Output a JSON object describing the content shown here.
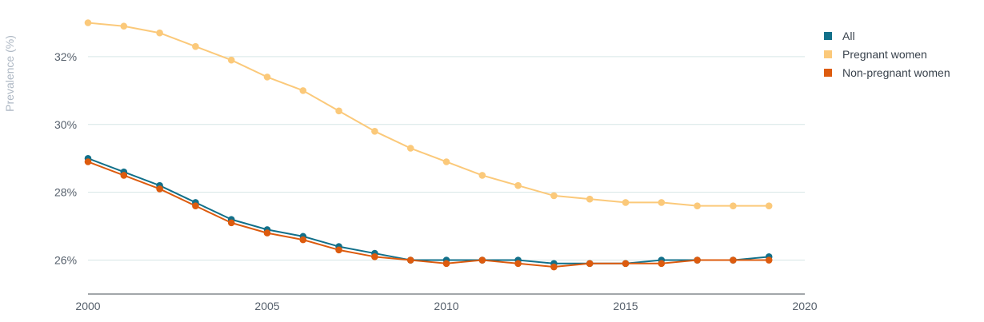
{
  "chart_data": {
    "type": "line",
    "ylabel": "Prevalence (%)",
    "xlabel": "",
    "x": [
      2000,
      2001,
      2002,
      2003,
      2004,
      2005,
      2006,
      2007,
      2008,
      2009,
      2010,
      2011,
      2012,
      2013,
      2014,
      2015,
      2016,
      2017,
      2018,
      2019
    ],
    "xlim": [
      2000,
      2020
    ],
    "ylim": [
      25,
      33.2
    ],
    "x_ticks": [
      {
        "value": 2000,
        "label": "2000"
      },
      {
        "value": 2005,
        "label": "2005"
      },
      {
        "value": 2010,
        "label": "2010"
      },
      {
        "value": 2015,
        "label": "2015"
      },
      {
        "value": 2020,
        "label": "2020"
      }
    ],
    "y_ticks": [
      {
        "value": 26,
        "label": "26%"
      },
      {
        "value": 28,
        "label": "28%"
      },
      {
        "value": 30,
        "label": "30%"
      },
      {
        "value": 32,
        "label": "32%"
      }
    ],
    "grid": true,
    "legend_position": "top-right",
    "series": [
      {
        "name": "All",
        "color": "#12708a",
        "values": [
          29.0,
          28.6,
          28.2,
          27.7,
          27.2,
          26.9,
          26.7,
          26.4,
          26.2,
          26.0,
          26.0,
          26.0,
          26.0,
          25.9,
          25.9,
          25.9,
          26.0,
          26.0,
          26.0,
          26.1
        ]
      },
      {
        "name": "Pregnant women",
        "color": "#fbc97a",
        "values": [
          33.0,
          32.9,
          32.7,
          32.3,
          31.9,
          31.4,
          31.0,
          30.4,
          29.8,
          29.3,
          28.9,
          28.5,
          28.2,
          27.9,
          27.8,
          27.7,
          27.7,
          27.6,
          27.6,
          27.6
        ]
      },
      {
        "name": "Non-pregnant women",
        "color": "#dd5b0e",
        "values": [
          28.9,
          28.5,
          28.1,
          27.6,
          27.1,
          26.8,
          26.6,
          26.3,
          26.1,
          26.0,
          25.9,
          26.0,
          25.9,
          25.8,
          25.9,
          25.9,
          25.9,
          26.0,
          26.0,
          26.0
        ]
      }
    ]
  }
}
